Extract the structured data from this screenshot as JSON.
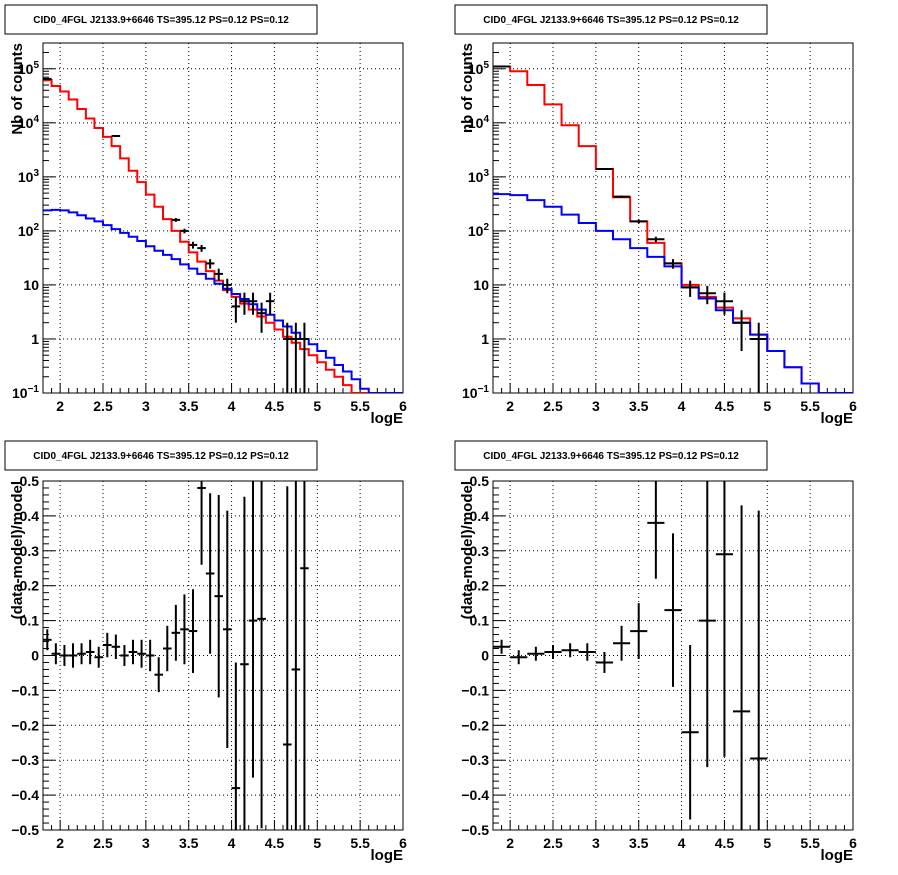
{
  "chart_data": [
    {
      "type": "histogram",
      "title": "CID0_4FGL J2133.9+6646 TS=395.12 PS=0.12 PS=0.12",
      "xlabel": "logE",
      "ylabel": "Nb of counts",
      "xlim": [
        1.8,
        6.0
      ],
      "ylim": [
        0.1,
        300000
      ],
      "yscale": "log",
      "grid": true,
      "xticks": [
        "2",
        "2.5",
        "3",
        "3.5",
        "4",
        "4.5",
        "5",
        "5.5",
        "6"
      ],
      "yticks": [
        "10^-1",
        "1",
        "10",
        "10^2",
        "10^3",
        "10^4",
        "10^5"
      ],
      "bin_edges": [
        1.8,
        1.9,
        2.0,
        2.1,
        2.2,
        2.3,
        2.4,
        2.5,
        2.6,
        2.7,
        2.8,
        2.9,
        3.0,
        3.1,
        3.2,
        3.3,
        3.4,
        3.5,
        3.6,
        3.7,
        3.8,
        3.9,
        4.0,
        4.1,
        4.2,
        4.3,
        4.4,
        4.5,
        4.6,
        4.7,
        4.8,
        4.9,
        5.0,
        5.1,
        5.2,
        5.3,
        5.4,
        5.5,
        5.6,
        5.7,
        5.8,
        5.9,
        6.0
      ],
      "series": [
        {
          "kind": "step",
          "color": "#ff0000",
          "values": [
            62000,
            48000,
            38000,
            27000,
            18000,
            12000,
            8000,
            5500,
            3700,
            2200,
            1300,
            800,
            470,
            280,
            165,
            100,
            63,
            40,
            27,
            18,
            12,
            8,
            6,
            4.5,
            3.5,
            2.6,
            2.0,
            1.5,
            1.1,
            0.85,
            0.65,
            0.5,
            0.37,
            0.27,
            0.2,
            0.14,
            0.1,
            0.1,
            0.1,
            0.1,
            0.1,
            0.1
          ]
        },
        {
          "kind": "step",
          "color": "#0000ff",
          "values": [
            240,
            245,
            240,
            220,
            195,
            170,
            150,
            128,
            108,
            92,
            78,
            65,
            52,
            43,
            36,
            30,
            24,
            20,
            16,
            13,
            10.5,
            8.5,
            6.8,
            5.5,
            4.4,
            3.5,
            2.8,
            2.2,
            1.7,
            1.3,
            1.0,
            0.8,
            0.6,
            0.45,
            0.33,
            0.25,
            0.18,
            0.12,
            0.1,
            0.1,
            0.1,
            0.1
          ]
        },
        {
          "kind": "points",
          "color": "#000000",
          "points": [
            {
              "x": 1.85,
              "y": 65000,
              "yerr": 250
            },
            {
              "x": 2.65,
              "y": 5700,
              "yerr": 75
            },
            {
              "x": 3.35,
              "y": 160,
              "yerr": 13
            },
            {
              "x": 3.45,
              "y": 100,
              "yerr": 10
            },
            {
              "x": 3.55,
              "y": 55,
              "yerr": 8
            },
            {
              "x": 3.65,
              "y": 48,
              "yerr": 7
            },
            {
              "x": 3.75,
              "y": 25,
              "yerr": 5
            },
            {
              "x": 3.85,
              "y": 16,
              "yerr": 4
            },
            {
              "x": 3.95,
              "y": 10,
              "yerr": 3
            },
            {
              "x": 4.05,
              "y": 4,
              "yerr": 2
            },
            {
              "x": 4.15,
              "y": 5,
              "yerr": 2.2
            },
            {
              "x": 4.25,
              "y": 5,
              "yerr": 2.2
            },
            {
              "x": 4.35,
              "y": 3,
              "yerr": 1.7
            },
            {
              "x": 4.45,
              "y": 5,
              "yerr": 2.2
            },
            {
              "x": 4.65,
              "y": 1,
              "yerr": 1
            },
            {
              "x": 4.75,
              "y": 1,
              "yerr": 1
            },
            {
              "x": 4.85,
              "y": 1,
              "yerr": 1
            }
          ]
        }
      ]
    },
    {
      "type": "histogram",
      "title": "CID0_4FGL J2133.9+6646 TS=395.12 PS=0.12 PS=0.12",
      "xlabel": "logE",
      "ylabel": "nb of counts",
      "xlim": [
        1.8,
        6.0
      ],
      "ylim": [
        0.1,
        300000
      ],
      "yscale": "log",
      "grid": true,
      "xticks": [
        "2",
        "2.5",
        "3",
        "3.5",
        "4",
        "4.5",
        "5",
        "5.5",
        "6"
      ],
      "yticks": [
        "10^-1",
        "1",
        "10",
        "10^2",
        "10^3",
        "10^4",
        "10^5"
      ],
      "bin_edges": [
        1.8,
        2.0,
        2.2,
        2.4,
        2.6,
        2.8,
        3.0,
        3.2,
        3.4,
        3.6,
        3.8,
        4.0,
        4.2,
        4.4,
        4.6,
        4.8,
        5.0,
        5.2,
        5.4,
        5.6,
        5.8,
        6.0
      ],
      "series": [
        {
          "kind": "step",
          "color": "#ff0000",
          "values": [
            110000,
            90000,
            50000,
            22000,
            9000,
            3700,
            1400,
            420,
            150,
            60,
            25,
            10,
            6,
            3.8,
            2.4,
            1.2,
            0.6,
            0.3,
            0.15,
            0.1,
            0.1
          ]
        },
        {
          "kind": "step",
          "color": "#0000ff",
          "values": [
            480,
            460,
            370,
            280,
            200,
            140,
            100,
            70,
            48,
            33,
            22,
            9,
            5.6,
            3.4,
            2.0,
            1.2,
            0.6,
            0.3,
            0.15,
            0.1,
            0.1
          ]
        },
        {
          "kind": "points",
          "color": "#000000",
          "points": [
            {
              "x": 1.9,
              "y": 110000,
              "yerr": 330
            },
            {
              "x": 3.1,
              "y": 1400,
              "yerr": 37
            },
            {
              "x": 3.3,
              "y": 430,
              "yerr": 21
            },
            {
              "x": 3.5,
              "y": 150,
              "yerr": 12
            },
            {
              "x": 3.7,
              "y": 70,
              "yerr": 8
            },
            {
              "x": 3.9,
              "y": 25,
              "yerr": 5
            },
            {
              "x": 4.1,
              "y": 9,
              "yerr": 3
            },
            {
              "x": 4.3,
              "y": 7,
              "yerr": 2.6
            },
            {
              "x": 4.5,
              "y": 5,
              "yerr": 2.2
            },
            {
              "x": 4.7,
              "y": 2,
              "yerr": 1.4
            },
            {
              "x": 4.9,
              "y": 1,
              "yerr": 1
            }
          ]
        }
      ]
    },
    {
      "type": "scatter",
      "title": "CID0_4FGL J2133.9+6646 TS=395.12 PS=0.12 PS=0.12",
      "xlabel": "logE",
      "ylabel": "(data-model)/model",
      "xlim": [
        1.8,
        6.0
      ],
      "ylim": [
        -0.5,
        0.5
      ],
      "grid": true,
      "xticks": [
        "2",
        "2.5",
        "3",
        "3.5",
        "4",
        "4.5",
        "5",
        "5.5",
        "6"
      ],
      "yticks": [
        "-0.5",
        "-0.4",
        "-0.3",
        "-0.2",
        "-0.1",
        "0",
        "0.1",
        "0.2",
        "0.3",
        "0.4",
        "0.5"
      ],
      "series": [
        {
          "kind": "points",
          "color": "#000000",
          "xerr": 0.05,
          "points": [
            {
              "x": 1.85,
              "y": 0.045,
              "yerr": 0.03
            },
            {
              "x": 1.95,
              "y": 0.005,
              "yerr": 0.03
            },
            {
              "x": 2.05,
              "y": 0.0,
              "yerr": 0.03
            },
            {
              "x": 2.15,
              "y": 0.0,
              "yerr": 0.035
            },
            {
              "x": 2.25,
              "y": 0.005,
              "yerr": 0.03
            },
            {
              "x": 2.35,
              "y": 0.01,
              "yerr": 0.035
            },
            {
              "x": 2.45,
              "y": -0.005,
              "yerr": 0.03
            },
            {
              "x": 2.55,
              "y": 0.03,
              "yerr": 0.035
            },
            {
              "x": 2.65,
              "y": 0.025,
              "yerr": 0.035
            },
            {
              "x": 2.75,
              "y": 0.0,
              "yerr": 0.03
            },
            {
              "x": 2.85,
              "y": 0.01,
              "yerr": 0.035
            },
            {
              "x": 2.95,
              "y": 0.005,
              "yerr": 0.04
            },
            {
              "x": 3.05,
              "y": 0.0,
              "yerr": 0.045
            },
            {
              "x": 3.15,
              "y": -0.055,
              "yerr": 0.05
            },
            {
              "x": 3.25,
              "y": 0.02,
              "yerr": 0.065
            },
            {
              "x": 3.35,
              "y": 0.065,
              "yerr": 0.08
            },
            {
              "x": 3.45,
              "y": 0.075,
              "yerr": 0.1
            },
            {
              "x": 3.55,
              "y": 0.07,
              "yerr": 0.12
            },
            {
              "x": 3.65,
              "y": 0.48,
              "yerr": 0.22
            },
            {
              "x": 3.75,
              "y": 0.235,
              "yerr": 0.23
            },
            {
              "x": 3.85,
              "y": 0.17,
              "yerr": 0.29
            },
            {
              "x": 3.95,
              "y": 0.075,
              "yerr": 0.34
            },
            {
              "x": 4.05,
              "y": -0.38,
              "yerr": 0.36
            },
            {
              "x": 4.15,
              "y": -0.025,
              "yerr": 0.48
            },
            {
              "x": 4.25,
              "y": 0.1,
              "yerr": 0.45
            },
            {
              "x": 4.35,
              "y": 0.105,
              "yerr": 0.6
            },
            {
              "x": 4.65,
              "y": -0.255,
              "yerr": 0.74
            },
            {
              "x": 4.75,
              "y": -0.04,
              "yerr": 0.96
            },
            {
              "x": 4.85,
              "y": 0.25,
              "yerr": 1.25
            }
          ]
        }
      ]
    },
    {
      "type": "scatter",
      "title": "CID0_4FGL J2133.9+6646 TS=395.12 PS=0.12 PS=0.12",
      "xlabel": "logE",
      "ylabel": "(data-model)/model",
      "xlim": [
        1.8,
        6.0
      ],
      "ylim": [
        -0.5,
        0.5
      ],
      "grid": true,
      "xticks": [
        "2",
        "2.5",
        "3",
        "3.5",
        "4",
        "4.5",
        "5",
        "5.5",
        "6"
      ],
      "yticks": [
        "-0.5",
        "-0.4",
        "-0.3",
        "-0.2",
        "-0.1",
        "0",
        "0.1",
        "0.2",
        "0.3",
        "0.4",
        "0.5"
      ],
      "series": [
        {
          "kind": "points",
          "color": "#000000",
          "xerr": 0.1,
          "points": [
            {
              "x": 1.9,
              "y": 0.025,
              "yerr": 0.02
            },
            {
              "x": 2.1,
              "y": -0.005,
              "yerr": 0.02
            },
            {
              "x": 2.3,
              "y": 0.005,
              "yerr": 0.02
            },
            {
              "x": 2.5,
              "y": 0.01,
              "yerr": 0.02
            },
            {
              "x": 2.7,
              "y": 0.015,
              "yerr": 0.02
            },
            {
              "x": 2.9,
              "y": 0.01,
              "yerr": 0.025
            },
            {
              "x": 3.1,
              "y": -0.02,
              "yerr": 0.03
            },
            {
              "x": 3.3,
              "y": 0.035,
              "yerr": 0.05
            },
            {
              "x": 3.5,
              "y": 0.07,
              "yerr": 0.08
            },
            {
              "x": 3.7,
              "y": 0.38,
              "yerr": 0.16
            },
            {
              "x": 3.9,
              "y": 0.13,
              "yerr": 0.22
            },
            {
              "x": 4.1,
              "y": -0.22,
              "yerr": 0.25
            },
            {
              "x": 4.3,
              "y": 0.1,
              "yerr": 0.42
            },
            {
              "x": 4.5,
              "y": 0.29,
              "yerr": 0.58
            },
            {
              "x": 4.7,
              "y": -0.16,
              "yerr": 0.59
            },
            {
              "x": 4.9,
              "y": -0.295,
              "yerr": 0.71
            }
          ]
        }
      ]
    }
  ]
}
